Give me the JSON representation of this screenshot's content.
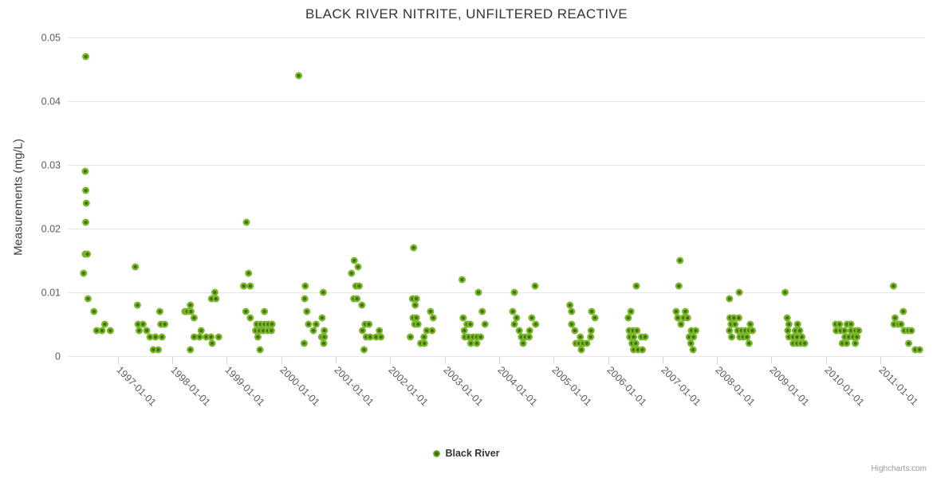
{
  "credit": "Highcharts.com",
  "legend": {
    "series_label": "Black River"
  },
  "colors": {
    "point_outer": "#79b62a",
    "point_inner": "#416d0e",
    "grid": "#e6e6e6",
    "axis_tick": "#ccd6eb",
    "tick_label": "#5a5a5a",
    "title_text": "#333333"
  },
  "chart_data": {
    "type": "scatter",
    "title": "BLACK RIVER NITRITE, UNFILTERED REACTIVE",
    "xlabel": "",
    "ylabel": "Measurements (mg/L)",
    "ylim": [
      0,
      0.05
    ],
    "xlim": [
      1996.08,
      2011.82
    ],
    "grid": true,
    "legend_position": "bottom",
    "y_ticks": [
      0,
      0.01,
      0.02,
      0.03,
      0.04,
      0.05
    ],
    "y_tick_labels": [
      "0",
      "0.01",
      "0.02",
      "0.03",
      "0.04",
      "0.05"
    ],
    "x_ticks": [
      1997,
      1998,
      1999,
      2000,
      2001,
      2002,
      2003,
      2004,
      2005,
      2006,
      2007,
      2008,
      2009,
      2010,
      2011
    ],
    "x_tick_labels": [
      "1997-01-01",
      "1998-01-01",
      "1999-01-01",
      "2000-01-01",
      "2001-01-01",
      "2002-01-01",
      "2003-01-01",
      "2004-01-01",
      "2005-01-01",
      "2006-01-01",
      "2007-01-01",
      "2008-01-01",
      "2009-01-01",
      "2010-01-01",
      "2011-01-01"
    ],
    "series": [
      {
        "name": "Black River",
        "marker_color": "#79b62a",
        "points": [
          [
            1996.41,
            0.047
          ],
          [
            1996.4,
            0.029
          ],
          [
            1996.41,
            0.026
          ],
          [
            1996.42,
            0.024
          ],
          [
            1996.41,
            0.021
          ],
          [
            1996.4,
            0.016
          ],
          [
            1996.44,
            0.016
          ],
          [
            1996.37,
            0.013
          ],
          [
            1996.45,
            0.009
          ],
          [
            1996.56,
            0.007
          ],
          [
            1996.76,
            0.005
          ],
          [
            1996.61,
            0.004
          ],
          [
            1996.71,
            0.004
          ],
          [
            1996.86,
            0.004
          ],
          [
            1997.32,
            0.014
          ],
          [
            1997.36,
            0.008
          ],
          [
            1997.77,
            0.007
          ],
          [
            1997.37,
            0.005
          ],
          [
            1997.46,
            0.005
          ],
          [
            1997.79,
            0.005
          ],
          [
            1997.86,
            0.005
          ],
          [
            1997.39,
            0.004
          ],
          [
            1997.53,
            0.004
          ],
          [
            1997.59,
            0.003
          ],
          [
            1997.69,
            0.003
          ],
          [
            1997.81,
            0.003
          ],
          [
            1997.65,
            0.001
          ],
          [
            1997.74,
            0.001
          ],
          [
            1998.23,
            0.007
          ],
          [
            1998.27,
            0.007
          ],
          [
            1998.34,
            0.007
          ],
          [
            1998.33,
            0.008
          ],
          [
            1998.4,
            0.006
          ],
          [
            1998.78,
            0.01
          ],
          [
            1998.72,
            0.009
          ],
          [
            1998.8,
            0.009
          ],
          [
            1998.53,
            0.004
          ],
          [
            1998.4,
            0.003
          ],
          [
            1998.5,
            0.003
          ],
          [
            1998.62,
            0.003
          ],
          [
            1998.71,
            0.003
          ],
          [
            1998.85,
            0.003
          ],
          [
            1998.73,
            0.002
          ],
          [
            1998.33,
            0.001
          ],
          [
            1999.36,
            0.021
          ],
          [
            1999.4,
            0.013
          ],
          [
            1999.31,
            0.011
          ],
          [
            1999.43,
            0.011
          ],
          [
            1999.35,
            0.007
          ],
          [
            1999.69,
            0.007
          ],
          [
            1999.43,
            0.006
          ],
          [
            1999.55,
            0.005
          ],
          [
            1999.62,
            0.005
          ],
          [
            1999.69,
            0.005
          ],
          [
            1999.76,
            0.005
          ],
          [
            1999.83,
            0.005
          ],
          [
            1999.53,
            0.004
          ],
          [
            1999.6,
            0.004
          ],
          [
            1999.67,
            0.004
          ],
          [
            1999.75,
            0.004
          ],
          [
            1999.82,
            0.004
          ],
          [
            1999.57,
            0.003
          ],
          [
            1999.61,
            0.001
          ],
          [
            2000.32,
            0.044
          ],
          [
            2000.44,
            0.011
          ],
          [
            2000.77,
            0.01
          ],
          [
            2000.43,
            0.009
          ],
          [
            2000.47,
            0.007
          ],
          [
            2000.75,
            0.006
          ],
          [
            2000.5,
            0.005
          ],
          [
            2000.64,
            0.005
          ],
          [
            2000.59,
            0.004
          ],
          [
            2000.79,
            0.004
          ],
          [
            2000.74,
            0.003
          ],
          [
            2000.79,
            0.003
          ],
          [
            2000.42,
            0.002
          ],
          [
            2000.78,
            0.002
          ],
          [
            2001.34,
            0.015
          ],
          [
            2001.41,
            0.014
          ],
          [
            2001.29,
            0.013
          ],
          [
            2001.37,
            0.011
          ],
          [
            2001.43,
            0.011
          ],
          [
            2001.33,
            0.009
          ],
          [
            2001.39,
            0.009
          ],
          [
            2001.48,
            0.008
          ],
          [
            2001.54,
            0.005
          ],
          [
            2001.61,
            0.005
          ],
          [
            2001.49,
            0.004
          ],
          [
            2001.8,
            0.004
          ],
          [
            2001.56,
            0.003
          ],
          [
            2001.63,
            0.003
          ],
          [
            2001.74,
            0.003
          ],
          [
            2001.83,
            0.003
          ],
          [
            2001.52,
            0.001
          ],
          [
            2002.43,
            0.017
          ],
          [
            2002.41,
            0.009
          ],
          [
            2002.48,
            0.009
          ],
          [
            2002.46,
            0.008
          ],
          [
            2002.74,
            0.007
          ],
          [
            2002.42,
            0.006
          ],
          [
            2002.48,
            0.006
          ],
          [
            2002.79,
            0.006
          ],
          [
            2002.45,
            0.005
          ],
          [
            2002.51,
            0.005
          ],
          [
            2002.67,
            0.004
          ],
          [
            2002.77,
            0.004
          ],
          [
            2002.37,
            0.003
          ],
          [
            2002.62,
            0.003
          ],
          [
            2002.56,
            0.002
          ],
          [
            2002.63,
            0.002
          ],
          [
            2003.32,
            0.012
          ],
          [
            2003.62,
            0.01
          ],
          [
            2003.69,
            0.007
          ],
          [
            2003.34,
            0.006
          ],
          [
            2003.41,
            0.005
          ],
          [
            2003.47,
            0.005
          ],
          [
            2003.74,
            0.005
          ],
          [
            2003.36,
            0.004
          ],
          [
            2003.37,
            0.003
          ],
          [
            2003.44,
            0.003
          ],
          [
            2003.52,
            0.003
          ],
          [
            2003.59,
            0.003
          ],
          [
            2003.66,
            0.003
          ],
          [
            2003.48,
            0.002
          ],
          [
            2003.59,
            0.002
          ],
          [
            2004.66,
            0.011
          ],
          [
            2004.28,
            0.01
          ],
          [
            2004.25,
            0.007
          ],
          [
            2004.32,
            0.006
          ],
          [
            2004.6,
            0.006
          ],
          [
            2004.28,
            0.005
          ],
          [
            2004.67,
            0.005
          ],
          [
            2004.37,
            0.004
          ],
          [
            2004.56,
            0.004
          ],
          [
            2004.41,
            0.003
          ],
          [
            2004.48,
            0.003
          ],
          [
            2004.55,
            0.003
          ],
          [
            2004.44,
            0.002
          ],
          [
            2005.3,
            0.008
          ],
          [
            2005.33,
            0.007
          ],
          [
            2005.7,
            0.007
          ],
          [
            2005.76,
            0.006
          ],
          [
            2005.33,
            0.005
          ],
          [
            2005.39,
            0.004
          ],
          [
            2005.69,
            0.004
          ],
          [
            2005.49,
            0.003
          ],
          [
            2005.68,
            0.003
          ],
          [
            2005.41,
            0.002
          ],
          [
            2005.47,
            0.002
          ],
          [
            2005.54,
            0.002
          ],
          [
            2005.61,
            0.002
          ],
          [
            2005.51,
            0.001
          ],
          [
            2006.52,
            0.011
          ],
          [
            2006.42,
            0.007
          ],
          [
            2006.37,
            0.006
          ],
          [
            2006.39,
            0.004
          ],
          [
            2006.46,
            0.004
          ],
          [
            2006.53,
            0.004
          ],
          [
            2006.4,
            0.003
          ],
          [
            2006.47,
            0.003
          ],
          [
            2006.61,
            0.003
          ],
          [
            2006.68,
            0.003
          ],
          [
            2006.44,
            0.002
          ],
          [
            2006.51,
            0.002
          ],
          [
            2006.47,
            0.001
          ],
          [
            2006.55,
            0.001
          ],
          [
            2006.63,
            0.001
          ],
          [
            2007.32,
            0.015
          ],
          [
            2007.3,
            0.011
          ],
          [
            2007.25,
            0.007
          ],
          [
            2007.42,
            0.007
          ],
          [
            2007.28,
            0.006
          ],
          [
            2007.39,
            0.006
          ],
          [
            2007.46,
            0.006
          ],
          [
            2007.34,
            0.005
          ],
          [
            2007.53,
            0.004
          ],
          [
            2007.61,
            0.004
          ],
          [
            2007.49,
            0.003
          ],
          [
            2007.57,
            0.003
          ],
          [
            2007.52,
            0.002
          ],
          [
            2007.56,
            0.001
          ],
          [
            2008.41,
            0.01
          ],
          [
            2008.23,
            0.009
          ],
          [
            2008.24,
            0.006
          ],
          [
            2008.31,
            0.006
          ],
          [
            2008.4,
            0.006
          ],
          [
            2008.26,
            0.005
          ],
          [
            2008.33,
            0.005
          ],
          [
            2008.61,
            0.005
          ],
          [
            2008.23,
            0.004
          ],
          [
            2008.38,
            0.004
          ],
          [
            2008.45,
            0.004
          ],
          [
            2008.52,
            0.004
          ],
          [
            2008.59,
            0.004
          ],
          [
            2008.65,
            0.004
          ],
          [
            2008.27,
            0.003
          ],
          [
            2008.42,
            0.003
          ],
          [
            2008.48,
            0.003
          ],
          [
            2008.55,
            0.003
          ],
          [
            2008.59,
            0.002
          ],
          [
            2009.25,
            0.01
          ],
          [
            2009.29,
            0.006
          ],
          [
            2009.32,
            0.005
          ],
          [
            2009.48,
            0.005
          ],
          [
            2009.3,
            0.004
          ],
          [
            2009.44,
            0.004
          ],
          [
            2009.52,
            0.004
          ],
          [
            2009.32,
            0.003
          ],
          [
            2009.4,
            0.003
          ],
          [
            2009.47,
            0.003
          ],
          [
            2009.56,
            0.003
          ],
          [
            2009.4,
            0.002
          ],
          [
            2009.47,
            0.002
          ],
          [
            2009.54,
            0.002
          ],
          [
            2009.61,
            0.002
          ],
          [
            2010.18,
            0.005
          ],
          [
            2010.25,
            0.005
          ],
          [
            2010.39,
            0.005
          ],
          [
            2010.46,
            0.005
          ],
          [
            2010.19,
            0.004
          ],
          [
            2010.27,
            0.004
          ],
          [
            2010.34,
            0.004
          ],
          [
            2010.46,
            0.004
          ],
          [
            2010.54,
            0.004
          ],
          [
            2010.6,
            0.004
          ],
          [
            2010.35,
            0.003
          ],
          [
            2010.42,
            0.003
          ],
          [
            2010.5,
            0.003
          ],
          [
            2010.57,
            0.003
          ],
          [
            2010.3,
            0.002
          ],
          [
            2010.38,
            0.002
          ],
          [
            2010.54,
            0.002
          ],
          [
            2011.24,
            0.011
          ],
          [
            2011.42,
            0.007
          ],
          [
            2011.27,
            0.006
          ],
          [
            2011.25,
            0.005
          ],
          [
            2011.33,
            0.005
          ],
          [
            2011.38,
            0.005
          ],
          [
            2011.44,
            0.004
          ],
          [
            2011.51,
            0.004
          ],
          [
            2011.57,
            0.004
          ],
          [
            2011.52,
            0.002
          ],
          [
            2011.64,
            0.001
          ],
          [
            2011.72,
            0.001
          ]
        ]
      }
    ]
  }
}
